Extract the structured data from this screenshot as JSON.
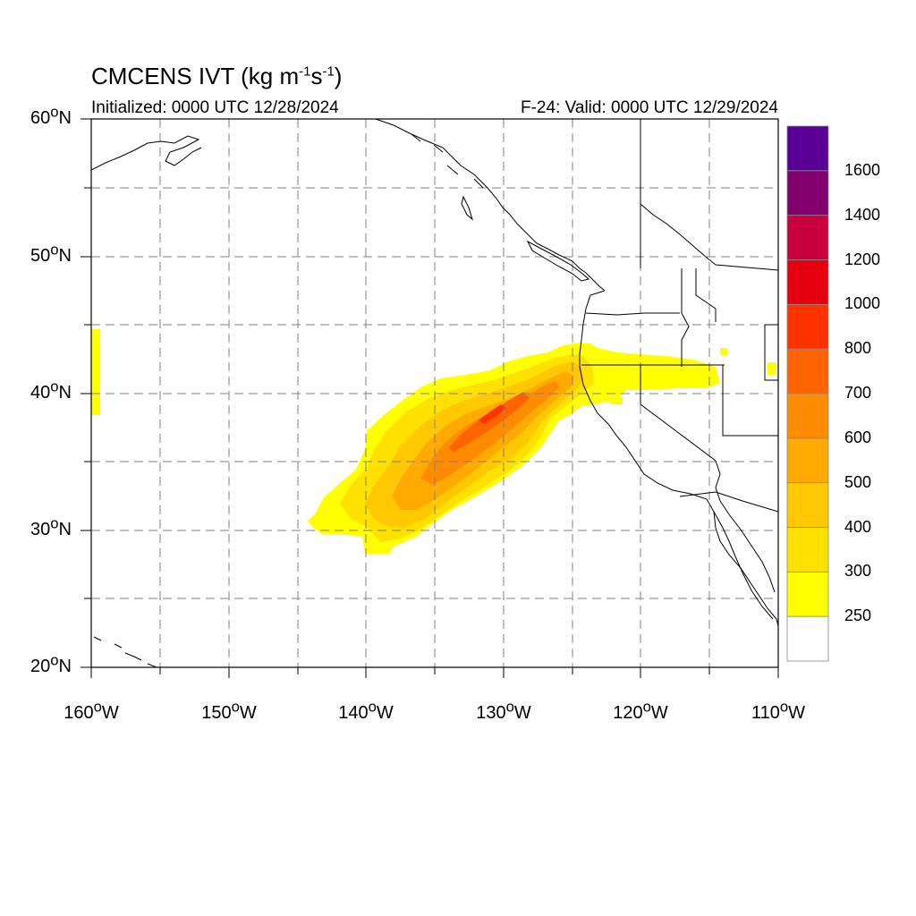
{
  "title": {
    "main": "CMCENS IVT (kg m",
    "sup1": "-1",
    "mid": "s",
    "sup2": "-1",
    "end": ")"
  },
  "initialized": "Initialized: 0000 UTC 12/28/2024",
  "valid": "F-24: Valid: 0000 UTC 12/29/2024",
  "lat_labels": [
    {
      "text": "60",
      "hemi": "N",
      "value": 60
    },
    {
      "text": "50",
      "hemi": "N",
      "value": 50
    },
    {
      "text": "40",
      "hemi": "N",
      "value": 40
    },
    {
      "text": "30",
      "hemi": "N",
      "value": 30
    },
    {
      "text": "20",
      "hemi": "N",
      "value": 20
    }
  ],
  "lon_labels": [
    {
      "text": "160",
      "hemi": "W",
      "value": -160
    },
    {
      "text": "150",
      "hemi": "W",
      "value": -150
    },
    {
      "text": "140",
      "hemi": "W",
      "value": -140
    },
    {
      "text": "130",
      "hemi": "W",
      "value": -130
    },
    {
      "text": "120",
      "hemi": "W",
      "value": -120
    },
    {
      "text": "110",
      "hemi": "W",
      "value": -110
    }
  ],
  "map_extent": {
    "lon_min": -160,
    "lon_max": -110,
    "lat_min": 20,
    "lat_max": 60
  },
  "colorbar": {
    "levels": [
      "250",
      "300",
      "400",
      "500",
      "600",
      "700",
      "800",
      "1000",
      "1200",
      "1400",
      "1600"
    ],
    "colors": [
      "#ffffff",
      "#ffff00",
      "#ffe100",
      "#ffc800",
      "#ffaa00",
      "#ff8c00",
      "#ff6400",
      "#ff3200",
      "#e6000f",
      "#c8003c",
      "#82006e",
      "#5a0096"
    ]
  },
  "colors": {
    "coast": "#000000",
    "grid": "#808080"
  }
}
